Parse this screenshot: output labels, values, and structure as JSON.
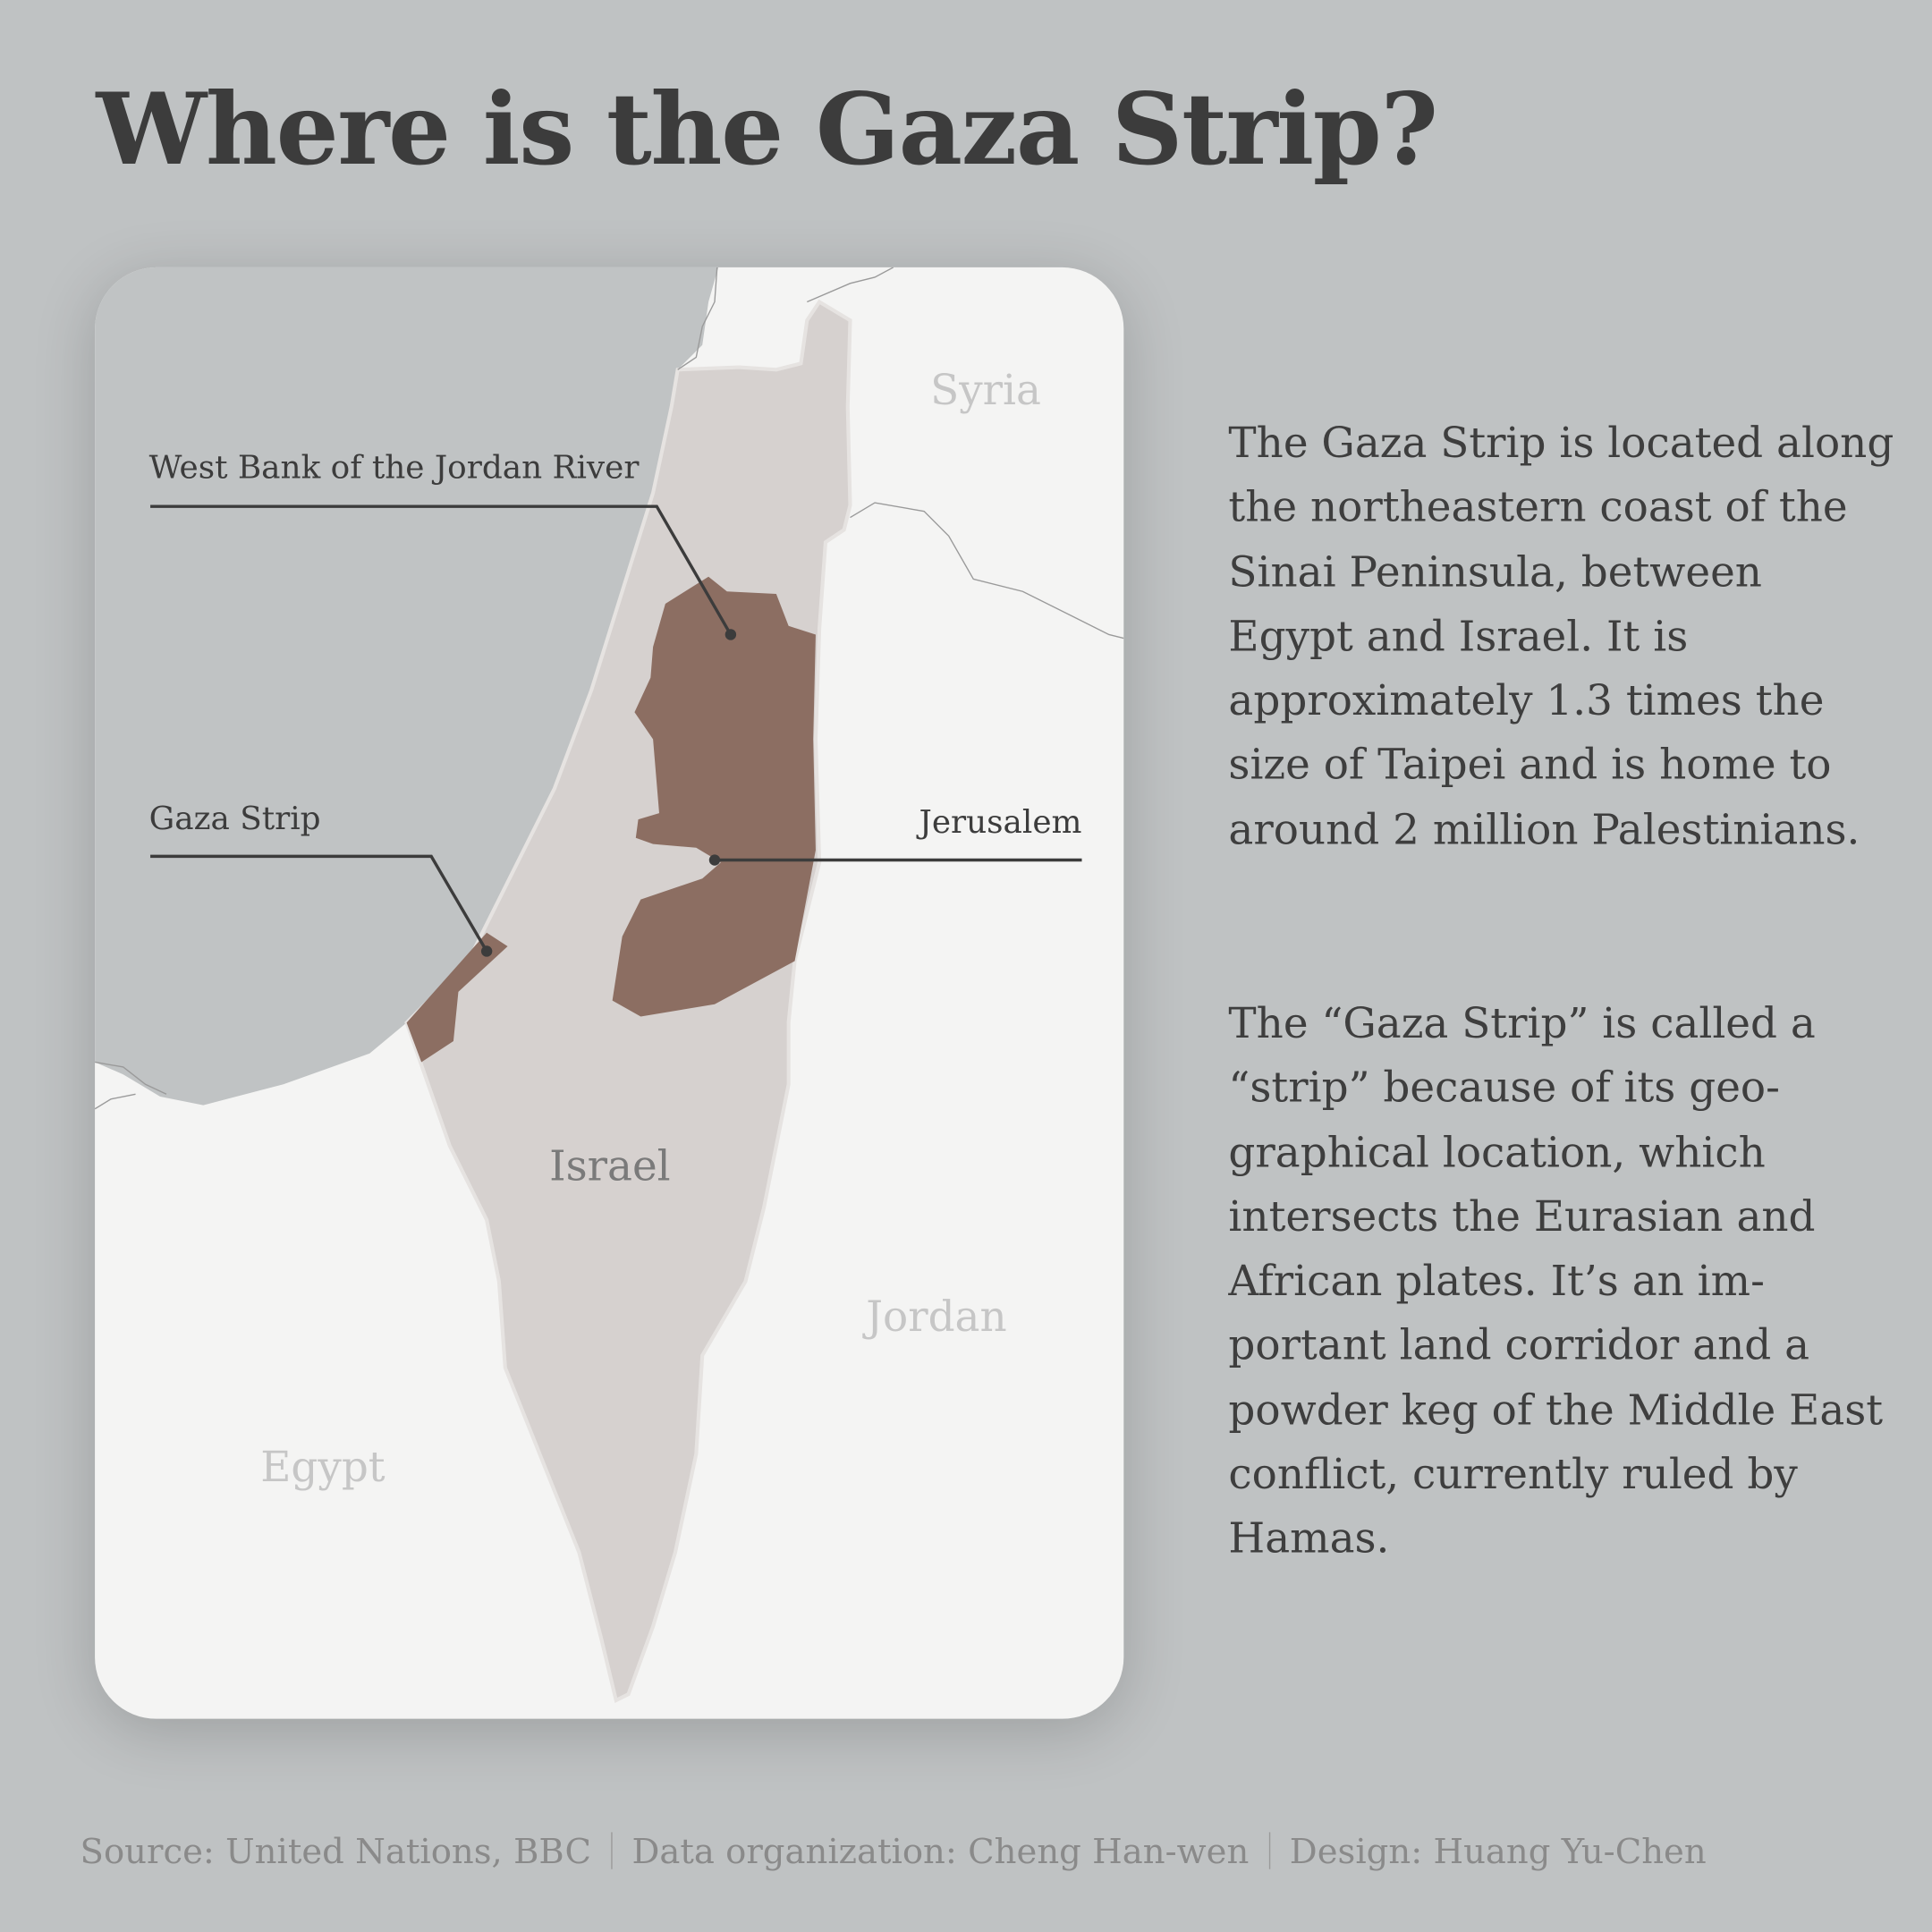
{
  "title": "Where is the Gaza Strip?",
  "map": {
    "countries": {
      "syria": "Syria",
      "israel": "Israel",
      "jordan": "Jordan",
      "egypt": "Egypt"
    },
    "callouts": {
      "west_bank": "West Bank of the Jordan River",
      "gaza": "Gaza Strip",
      "jerusalem": "Jerusalem"
    },
    "colors": {
      "sea": "#c0c3c4",
      "land": "#f4f4f3",
      "israel": "#d6d1cf",
      "palestinian_territories": "#8c6e62",
      "callout_line": "#3c3c3c"
    }
  },
  "paragraphs": [
    "The Gaza Strip is located along the northeastern coast of the Sinai Peninsula, between Egypt and Israel. It is approximately 1.3 times the size of Taipei and is home to around 2 million Palestinians.",
    "The “Gaza Strip” is called a “strip” because of its geo­graphical location, which intersects the Eurasian and African plates. It’s an im­portant land corridor and a powder keg of the Middle East conflict, currently ruled by Hamas."
  ],
  "footer": {
    "source": "Source: United Nations, BBC",
    "data_org": "Data organization: Cheng Han-wen",
    "design": "Design: Huang Yu-Chen"
  }
}
